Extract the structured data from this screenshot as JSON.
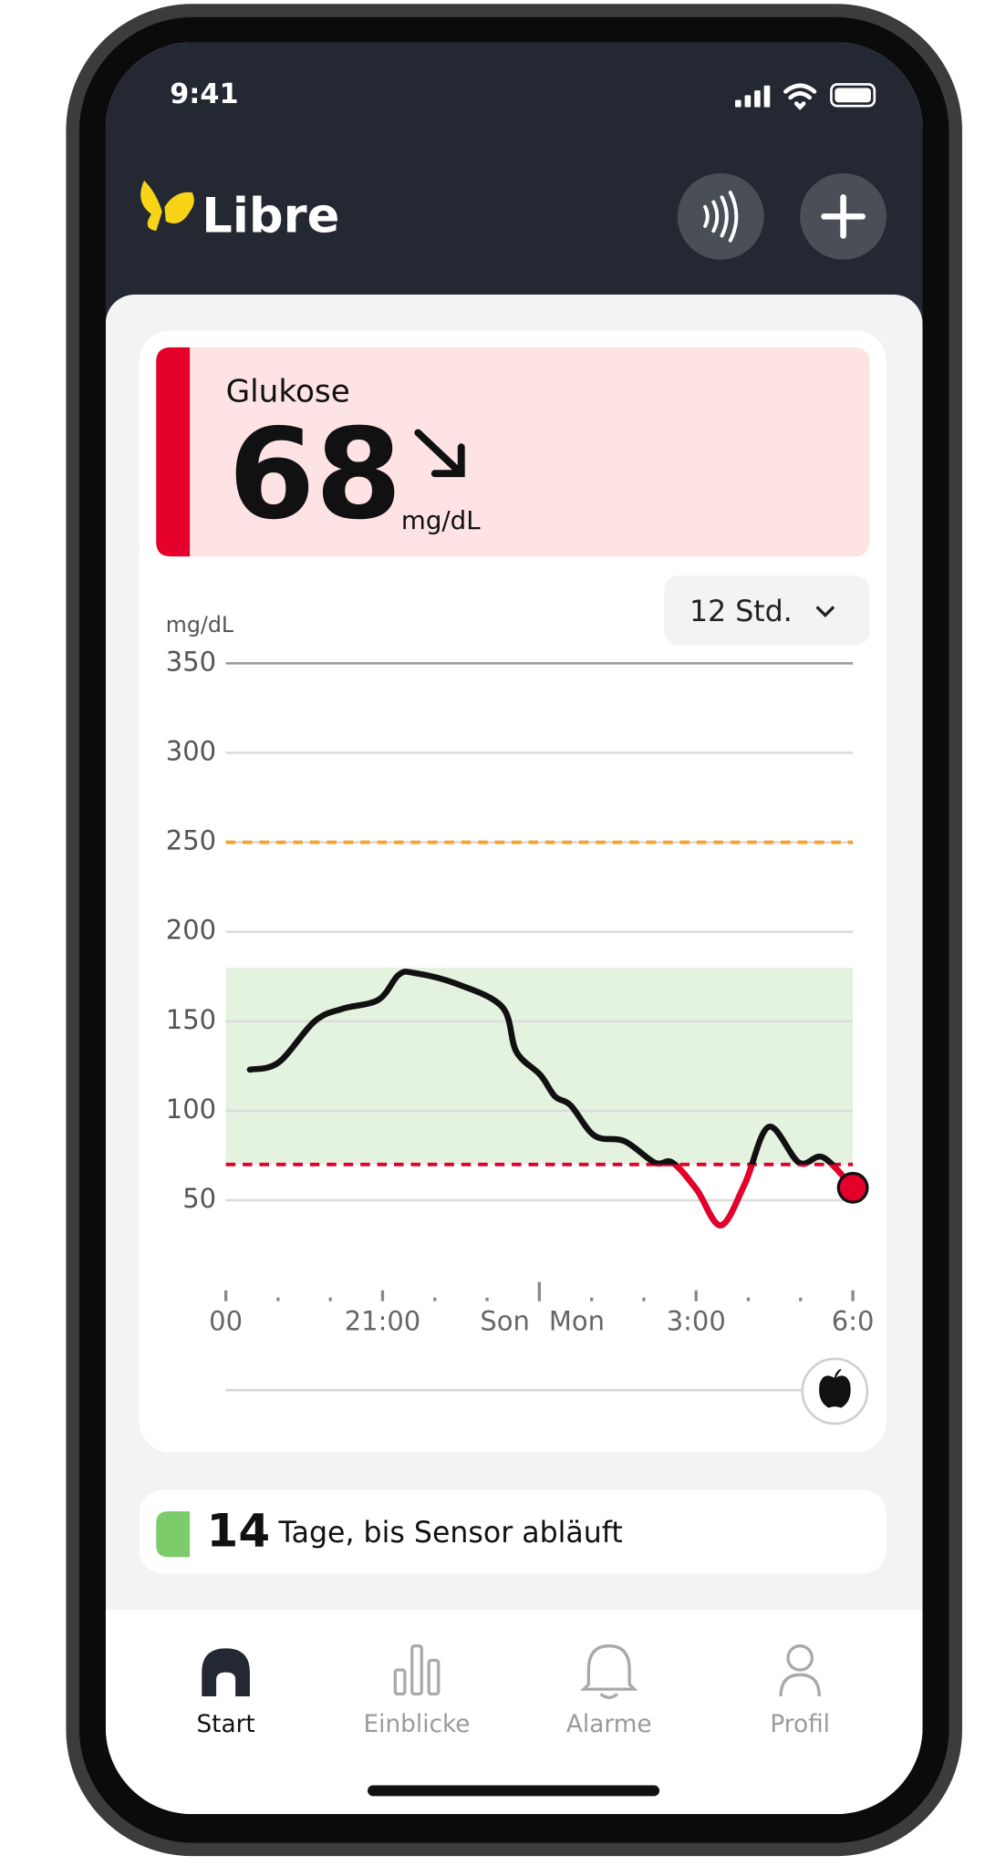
{
  "status_bar": {
    "time": "9:41"
  },
  "header": {
    "app_name": "Libre"
  },
  "glucose": {
    "label": "Glukose",
    "value": 68,
    "unit": "mg/dL"
  },
  "range_selector": "12 Std.",
  "chart_data": {
    "type": "line",
    "y_label": "mg/dL",
    "ylim": [
      0,
      350
    ],
    "yticks": [
      50,
      100,
      150,
      200,
      250,
      300,
      350
    ],
    "xlim": [
      18,
      30
    ],
    "xticks": [
      {
        "value": 18,
        "label": "00"
      },
      {
        "value": 21,
        "label": "21:00"
      },
      {
        "value": 27,
        "label": "3:00"
      },
      {
        "value": 30,
        "label": "6:0"
      }
    ],
    "xminor": [
      19,
      20,
      22,
      23,
      25,
      26,
      28,
      29
    ],
    "day_divider": {
      "value": 24,
      "labels": [
        "Son",
        "Mon"
      ]
    },
    "grid": true,
    "target_range": [
      70,
      180
    ],
    "target_color": "#e4f3e0",
    "high_line": 250,
    "high_color": "#f5a32a",
    "low_line": 70,
    "low_color": "#e4002b",
    "series": [
      {
        "color": "#111111",
        "x": [
          18.46,
          19.01,
          19.7,
          20.23,
          20.92,
          21.31,
          21.61,
          22.41,
          23.29,
          23.56,
          24.02,
          24.3,
          24.6,
          25.06,
          25.63,
          26.21,
          26.55,
          27.01,
          27.47,
          27.93,
          28.39,
          28.97,
          29.43,
          30
        ],
        "values": [
          123,
          127,
          150,
          157,
          162,
          176,
          177,
          171,
          158,
          133,
          120,
          108,
          103,
          86,
          83,
          71,
          71,
          56,
          36,
          59,
          91,
          71,
          74,
          57
        ]
      }
    ]
  },
  "sensor": {
    "days": 14,
    "text": "Tage, bis Sensor abläuft"
  },
  "nav": [
    {
      "label": "Start"
    },
    {
      "label": "Einblicke"
    },
    {
      "label": "Alarme"
    },
    {
      "label": "Profil"
    }
  ]
}
